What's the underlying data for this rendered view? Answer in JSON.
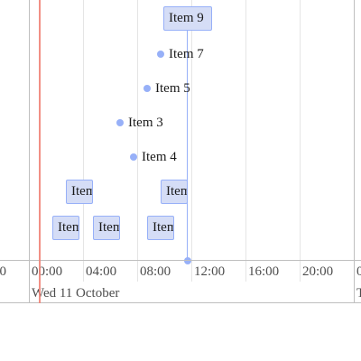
{
  "timeline": {
    "date_label": "Wed 11 October",
    "hour_labels": [
      "00",
      "00:00",
      "04:00",
      "08:00",
      "12:00",
      "16:00",
      "20:00",
      "0"
    ],
    "next_date_partial": "T",
    "items": {
      "item9": "Item 9",
      "item7": "Item 7",
      "item5": "Item 5",
      "item3": "Item 3",
      "item4": "Item 4",
      "box_a": "Item",
      "box_b": "Item",
      "box_c": "Item",
      "box_d": "Item",
      "box_e": "Item"
    },
    "colors": {
      "item_fill": "#d5ddf6",
      "item_border": "#97b0f8",
      "current_time": "#f08478",
      "grid": "#e5e5e5"
    }
  }
}
